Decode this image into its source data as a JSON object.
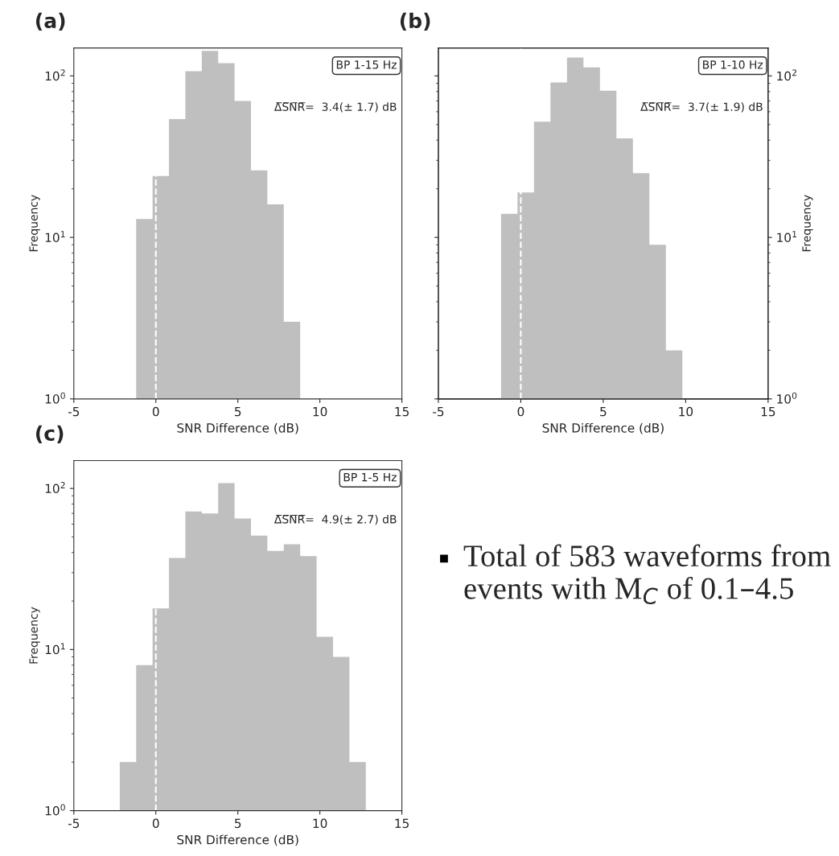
{
  "chart_data": [
    {
      "type": "histogram",
      "title": "(a)",
      "xlabel": "SNR Difference (dB)",
      "ylabel": "Frequency",
      "color": "#bfbfbf",
      "bins": [
        -1.2,
        -0.2,
        0.8,
        1.8,
        2.8,
        3.8,
        4.8,
        5.8,
        6.8,
        7.8,
        8.8
      ],
      "values": [
        13,
        24,
        54,
        107,
        143,
        120,
        70,
        26,
        16,
        3
      ],
      "log": "y",
      "xlim": [
        -5,
        15
      ],
      "xticks": [
        -5,
        0,
        5,
        10,
        15
      ],
      "ylim": [
        1,
        149
      ],
      "yticks": [
        {
          "value": 1,
          "label": "10$^{0}$"
        },
        {
          "value": 10,
          "label": "10$^{1}$"
        },
        {
          "value": 100,
          "label": "10$^{2}$"
        }
      ],
      "ref_lines": [
        {
          "axis": "x",
          "value": 0,
          "color": "#ffffff",
          "line_style": "dashed"
        }
      ],
      "annotations": [
        "BP 1-15 Hz",
        "Δ̅S̅N̅R̅=  3.4(± 1.7) dB"
      ]
    },
    {
      "type": "histogram",
      "title": "(b)",
      "xlabel": "SNR Difference (dB)",
      "y2label": "Frequency",
      "bins": [
        -1.2,
        -0.2,
        0.8,
        1.8,
        2.8,
        3.8,
        4.8,
        5.8,
        6.8,
        7.8,
        8.8,
        9.8
      ],
      "series": [
        {
          "color": "#bfbfbf",
          "axis": "y2",
          "values": [
            14,
            19,
            52,
            91,
            130,
            113,
            81,
            41,
            25,
            9,
            2
          ]
        }
      ],
      "log": "y2",
      "xlim": [
        -5,
        15
      ],
      "xticks": [
        -5,
        0,
        5,
        10,
        15
      ],
      "y2lim": [
        1,
        149
      ],
      "y2ticks": [
        {
          "value": 1,
          "label": "10$^{0}$"
        },
        {
          "value": 10,
          "label": "10$^{1}$"
        },
        {
          "value": 100,
          "label": "10$^{2}$"
        }
      ],
      "ref_lines": [
        {
          "axis": "x",
          "value": 0,
          "color": "#ffffff",
          "line_style": "dashed"
        }
      ],
      "annotations": [
        "BP 1-10 Hz",
        "Δ̅S̅N̅R̅=  3.7(± 1.9) dB"
      ]
    },
    {
      "type": "histogram",
      "title": "(c)",
      "xlabel": "SNR Difference (dB)",
      "ylabel": "Frequency",
      "color": "#bfbfbf",
      "bins": [
        -2.2,
        -1.2,
        -0.2,
        0.8,
        1.8,
        2.8,
        3.8,
        4.8,
        5.8,
        6.8,
        7.8,
        8.8,
        9.8,
        10.8,
        11.8,
        12.8
      ],
      "values": [
        2,
        8,
        18,
        37,
        72,
        70,
        108,
        65,
        51,
        41,
        45,
        38,
        12,
        9,
        2
      ],
      "log": "y",
      "xlim": [
        -5,
        15
      ],
      "xticks": [
        -5,
        0,
        5,
        10,
        15
      ],
      "ylim": [
        1,
        149
      ],
      "yticks": [
        {
          "value": 1,
          "label": "10$^{0}$"
        },
        {
          "value": 10,
          "label": "10$^{1}$"
        },
        {
          "value": 100,
          "label": "10$^{2}$"
        }
      ],
      "ref_lines": [
        {
          "axis": "x",
          "value": 0,
          "color": "#ffffff",
          "line_style": "dashed"
        }
      ],
      "annotations": [
        "BP 1-5 Hz",
        "Δ̅S̅N̅R̅=  4.9(± 2.7) dB"
      ]
    },
    {
      "type": "other",
      "annotations": [
        "Total of 583 waveforms from events with M$_{C}$ of 0.1–4.5"
      ]
    }
  ]
}
